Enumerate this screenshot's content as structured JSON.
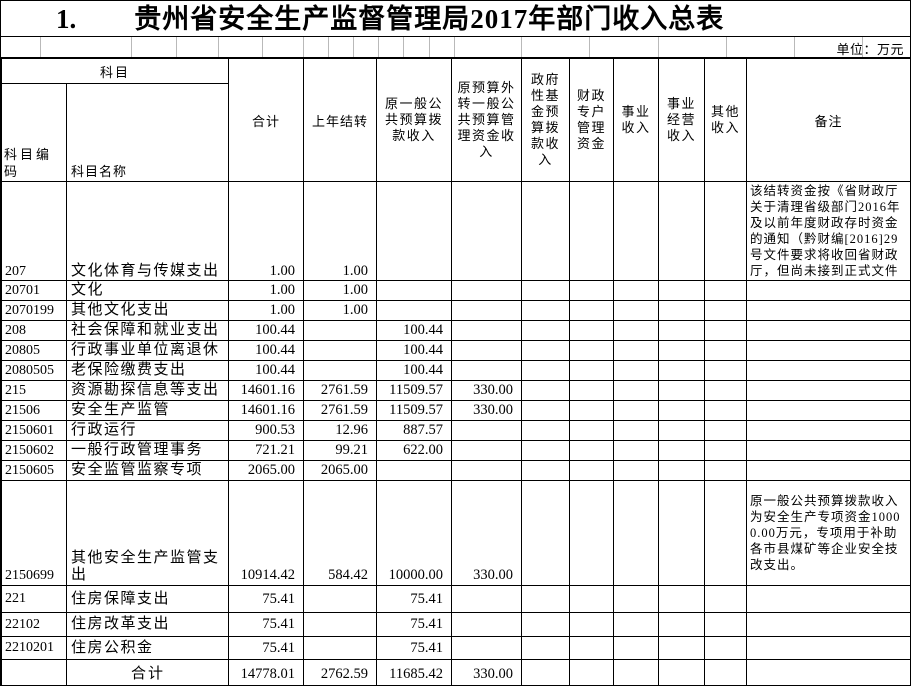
{
  "title": {
    "index": "1.",
    "text": "贵州省安全生产监督管理局2017年部门收入总表"
  },
  "unit_label": "单位：万元",
  "table": {
    "header": {
      "subject_group": "科目",
      "code": "科目编码",
      "name": "科目名称",
      "columns": [
        "合计",
        "上年结转",
        "原一般公共预算拨款收入",
        "原预算外转一般公共预算管理资金收入",
        "政府性基金预算拨款收入",
        "财政专户管理资金",
        "事业收入",
        "事业经营收入",
        "其他收入",
        "备注"
      ]
    },
    "rows": [
      {
        "code": "207",
        "name": "文化体育与传媒支出",
        "total": "1.00",
        "carryover": "1.00",
        "budget": "",
        "transfer": "",
        "gov_fund": "",
        "fiscal_acct": "",
        "business": "",
        "business_op": "",
        "other": "",
        "remark": "该结转资金按《省财政厅关于清理省级部门2016年及以前年度财政存时资金的通知（黔财编[2016]29号文件要求将收回省财政厅，但尚未接到正式文件"
      },
      {
        "code": "20701",
        "name": "文化",
        "total": "1.00",
        "carryover": "1.00",
        "budget": "",
        "transfer": "",
        "gov_fund": "",
        "fiscal_acct": "",
        "business": "",
        "business_op": "",
        "other": "",
        "remark": ""
      },
      {
        "code": "2070199",
        "name": "其他文化支出",
        "total": "1.00",
        "carryover": "1.00",
        "budget": "",
        "transfer": "",
        "gov_fund": "",
        "fiscal_acct": "",
        "business": "",
        "business_op": "",
        "other": "",
        "remark": ""
      },
      {
        "code": "208",
        "name": "社会保障和就业支出",
        "total": "100.44",
        "carryover": "",
        "budget": "100.44",
        "transfer": "",
        "gov_fund": "",
        "fiscal_acct": "",
        "business": "",
        "business_op": "",
        "other": "",
        "remark": ""
      },
      {
        "code": "20805",
        "name": "行政事业单位离退休",
        "total": "100.44",
        "carryover": "",
        "budget": "100.44",
        "transfer": "",
        "gov_fund": "",
        "fiscal_acct": "",
        "business": "",
        "business_op": "",
        "other": "",
        "remark": ""
      },
      {
        "code": "2080505",
        "name": "老保险缴费支出",
        "total": "100.44",
        "carryover": "",
        "budget": "100.44",
        "transfer": "",
        "gov_fund": "",
        "fiscal_acct": "",
        "business": "",
        "business_op": "",
        "other": "",
        "remark": ""
      },
      {
        "code": "215",
        "name": "资源勘探信息等支出",
        "total": "14601.16",
        "carryover": "2761.59",
        "budget": "11509.57",
        "transfer": "330.00",
        "gov_fund": "",
        "fiscal_acct": "",
        "business": "",
        "business_op": "",
        "other": "",
        "remark": ""
      },
      {
        "code": "21506",
        "name": "安全生产监管",
        "total": "14601.16",
        "carryover": "2761.59",
        "budget": "11509.57",
        "transfer": "330.00",
        "gov_fund": "",
        "fiscal_acct": "",
        "business": "",
        "business_op": "",
        "other": "",
        "remark": ""
      },
      {
        "code": "2150601",
        "name": "行政运行",
        "total": "900.53",
        "carryover": "12.96",
        "budget": "887.57",
        "transfer": "",
        "gov_fund": "",
        "fiscal_acct": "",
        "business": "",
        "business_op": "",
        "other": "",
        "remark": ""
      },
      {
        "code": "2150602",
        "name": "一般行政管理事务",
        "total": "721.21",
        "carryover": "99.21",
        "budget": "622.00",
        "transfer": "",
        "gov_fund": "",
        "fiscal_acct": "",
        "business": "",
        "business_op": "",
        "other": "",
        "remark": ""
      },
      {
        "code": "2150605",
        "name": "安全监管监察专项",
        "total": "2065.00",
        "carryover": "2065.00",
        "budget": "",
        "transfer": "",
        "gov_fund": "",
        "fiscal_acct": "",
        "business": "",
        "business_op": "",
        "other": "",
        "remark": ""
      },
      {
        "code": "2150699",
        "name": "其他安全生产监管支出",
        "total": "10914.42",
        "carryover": "584.42",
        "budget": "10000.00",
        "transfer": "330.00",
        "gov_fund": "",
        "fiscal_acct": "",
        "business": "",
        "business_op": "",
        "other": "",
        "remark": "原一般公共预算拨款收入为安全生产专项资金10000.00万元，专项用于补助各市县煤矿等企业安全技改支出。"
      },
      {
        "code": "221",
        "name": "住房保障支出",
        "total": "75.41",
        "carryover": "",
        "budget": "75.41",
        "transfer": "",
        "gov_fund": "",
        "fiscal_acct": "",
        "business": "",
        "business_op": "",
        "other": "",
        "remark": ""
      },
      {
        "code": "22102",
        "name": "住房改革支出",
        "total": "75.41",
        "carryover": "",
        "budget": "75.41",
        "transfer": "",
        "gov_fund": "",
        "fiscal_acct": "",
        "business": "",
        "business_op": "",
        "other": "",
        "remark": ""
      },
      {
        "code": "2210201",
        "name": "住房公积金",
        "total": "75.41",
        "carryover": "",
        "budget": "75.41",
        "transfer": "",
        "gov_fund": "",
        "fiscal_acct": "",
        "business": "",
        "business_op": "",
        "other": "",
        "remark": ""
      }
    ],
    "total_row": {
      "code": "",
      "label": "合计",
      "total": "14778.01",
      "carryover": "2762.59",
      "budget": "11685.42",
      "transfer": "330.00",
      "gov_fund": "",
      "fiscal_acct": "",
      "business": "",
      "business_op": "",
      "other": "",
      "remark": ""
    }
  }
}
